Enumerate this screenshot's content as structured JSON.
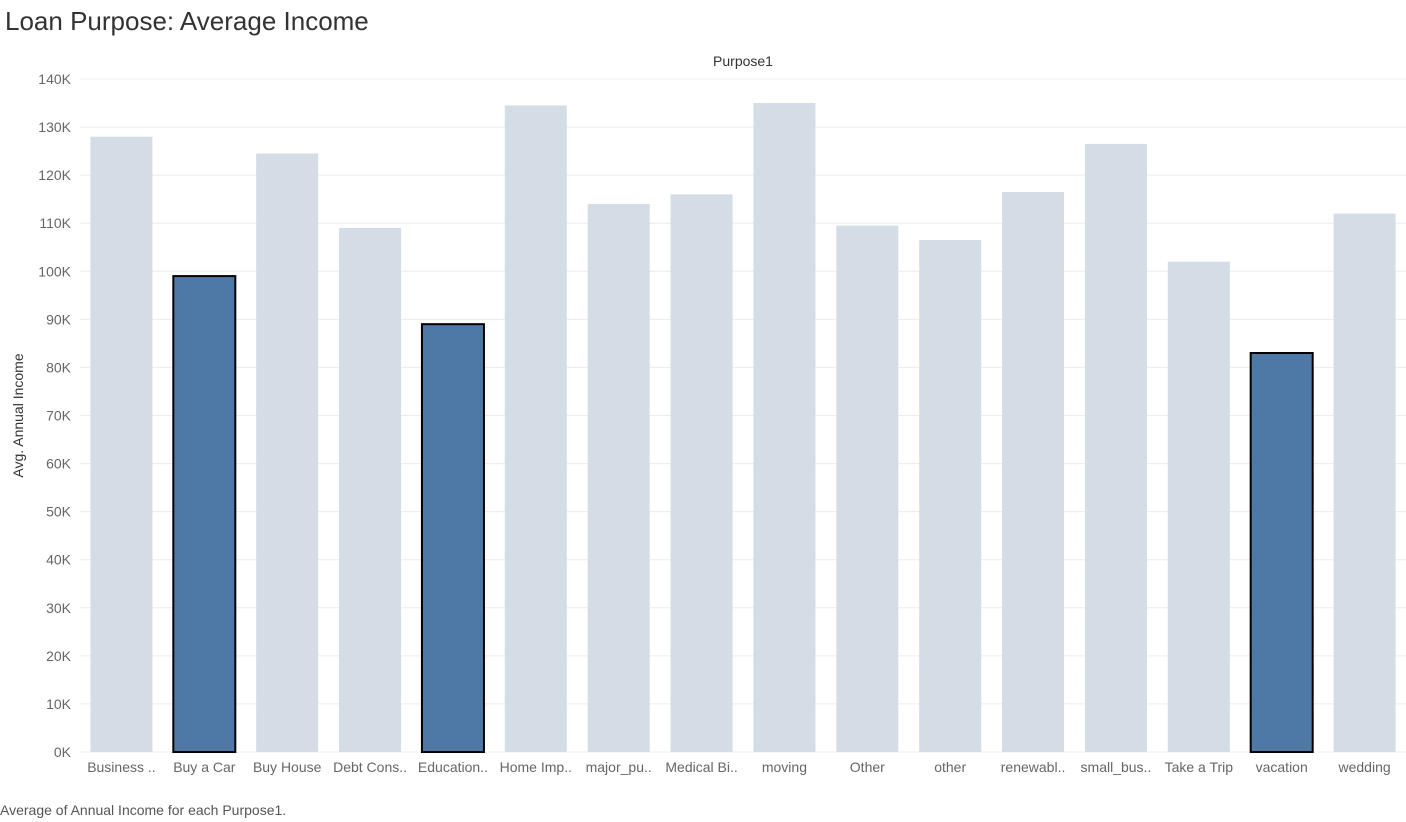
{
  "title": "Loan Purpose: Average Income",
  "caption": "Average of Annual Income for each Purpose1.",
  "chart_data": {
    "type": "bar",
    "column_header": "Purpose1",
    "ylabel": "Avg. Annual Income",
    "ylim": [
      0,
      140000
    ],
    "yticks": [
      0,
      10000,
      20000,
      30000,
      40000,
      50000,
      60000,
      70000,
      80000,
      90000,
      100000,
      110000,
      120000,
      130000,
      140000
    ],
    "ytick_labels": [
      "0K",
      "10K",
      "20K",
      "30K",
      "40K",
      "50K",
      "60K",
      "70K",
      "80K",
      "90K",
      "100K",
      "110K",
      "120K",
      "130K",
      "140K"
    ],
    "grid": true,
    "categories": [
      "Business ..",
      "Buy a Car",
      "Buy House",
      "Debt Cons..",
      "Education..",
      "Home Imp..",
      "major_pu..",
      "Medical Bi..",
      "moving",
      "Other",
      "other",
      "renewabl..",
      "small_bus..",
      "Take a Trip",
      "vacation",
      "wedding"
    ],
    "values": [
      128000,
      99000,
      124500,
      109000,
      89000,
      134500,
      114000,
      116000,
      135000,
      109500,
      106500,
      116500,
      126500,
      102000,
      83000,
      112000
    ],
    "highlighted": [
      false,
      true,
      false,
      false,
      true,
      false,
      false,
      false,
      false,
      false,
      false,
      false,
      false,
      false,
      true,
      false
    ],
    "colors": {
      "bar": "#d4dce5",
      "highlight": "#4e79a7",
      "highlight_border": "#000000",
      "grid": "#ececec"
    }
  }
}
